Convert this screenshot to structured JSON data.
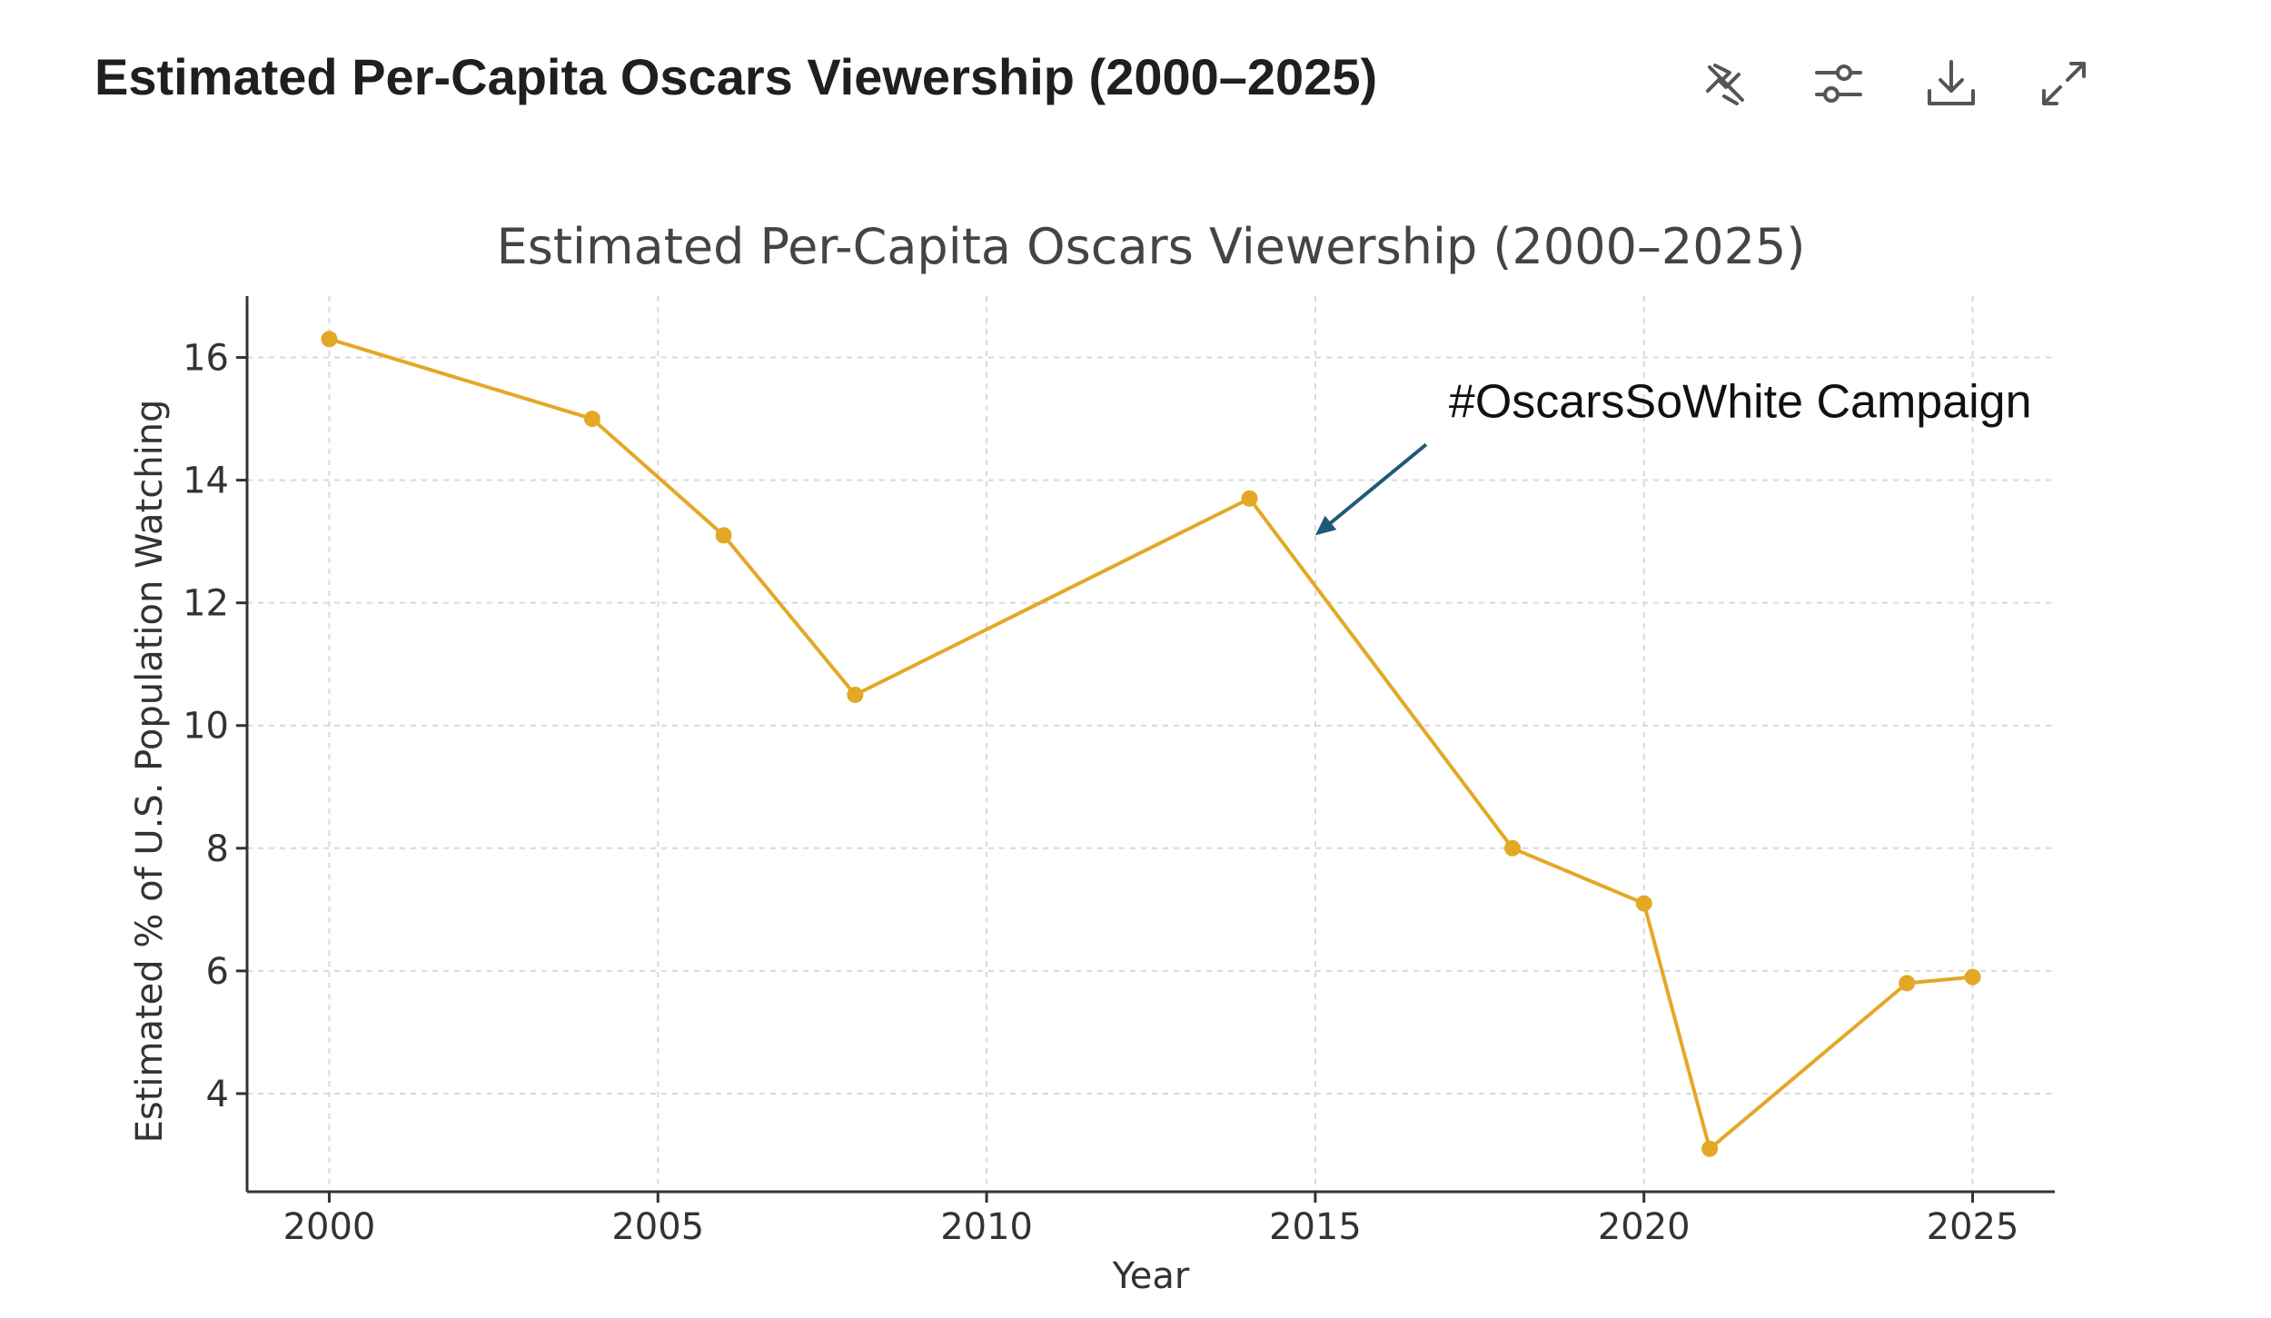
{
  "header": {
    "title": "Estimated Per-Capita Oscars Viewership (2000–2025)",
    "tools": [
      {
        "name": "chart-type-icon",
        "label": "Chart type"
      },
      {
        "name": "settings-sliders-icon",
        "label": "Adjust"
      },
      {
        "name": "download-icon",
        "label": "Download"
      },
      {
        "name": "expand-icon",
        "label": "Expand"
      }
    ]
  },
  "colors": {
    "line": "#E3A826",
    "annotation_arrow": "#1f5a7a",
    "icon": "#555555"
  },
  "chart_data": {
    "type": "line",
    "title": "Estimated Per-Capita Oscars Viewership (2000–2025)",
    "xlabel": "Year",
    "ylabel": "Estimated % of U.S. Population Watching",
    "x": [
      2000,
      2004,
      2006,
      2008,
      2014,
      2018,
      2020,
      2021,
      2024,
      2025
    ],
    "y": [
      16.3,
      15.0,
      13.1,
      10.5,
      13.7,
      8.0,
      7.1,
      3.1,
      5.8,
      5.9
    ],
    "xlim": [
      1998.75,
      2026.25
    ],
    "ylim": [
      2.4,
      17.0
    ],
    "xticks": [
      2000,
      2005,
      2010,
      2015,
      2020,
      2025
    ],
    "yticks": [
      4,
      6,
      8,
      10,
      12,
      14,
      16
    ],
    "grid": true,
    "annotation": {
      "text": "#OscarsSoWhite Campaign",
      "x": 2015,
      "y": 13.1
    }
  }
}
